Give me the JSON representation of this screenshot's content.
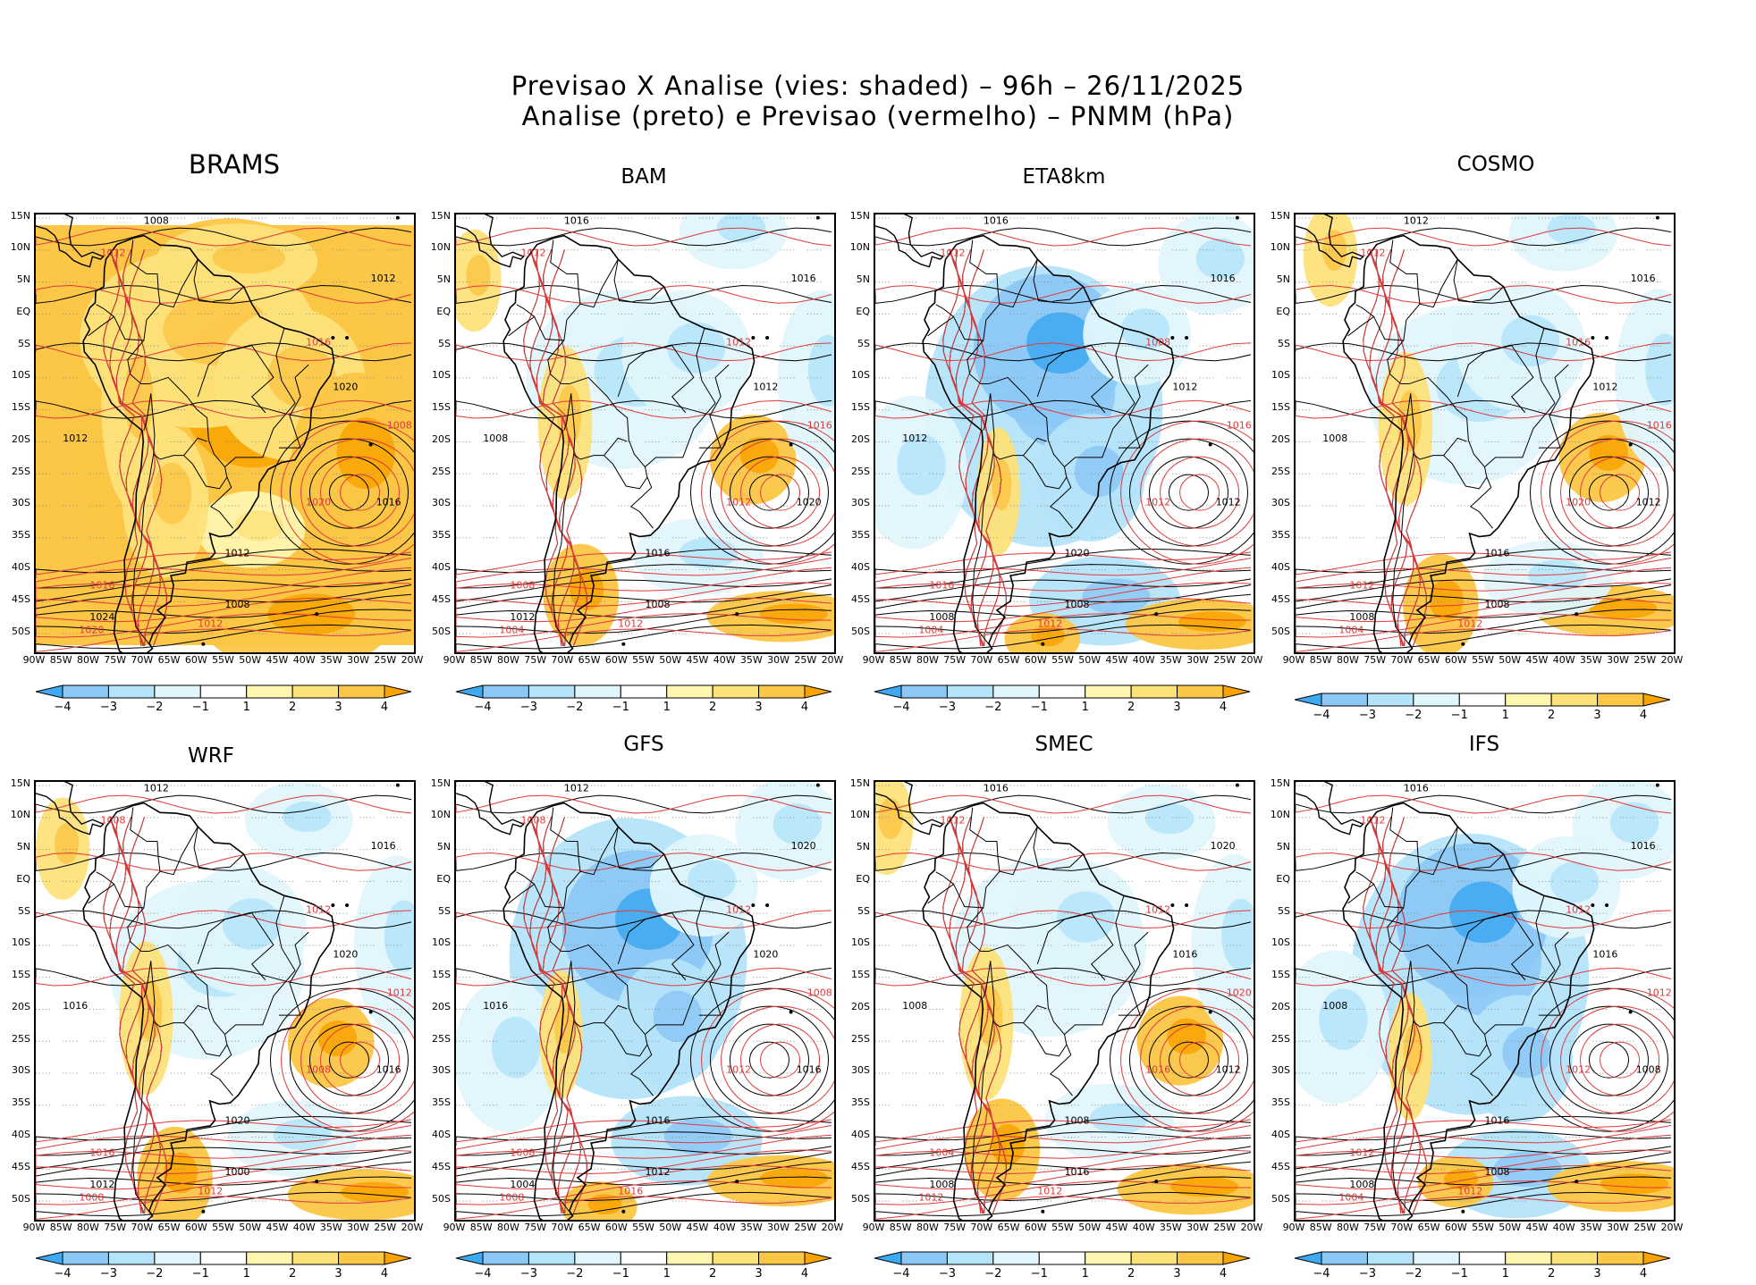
{
  "header": {
    "line1": "Previsao X Analise (vies: shaded) – 96h – 26/11/2025",
    "line2": "Analise (preto) e Previsao (vermelho) – PNMM (hPa)"
  },
  "axes": {
    "lat_labels": [
      "15N",
      "10N",
      "5N",
      "EQ",
      "5S",
      "10S",
      "15S",
      "20S",
      "25S",
      "30S",
      "35S",
      "40S",
      "45S",
      "50S"
    ],
    "lon_labels": [
      "90W",
      "85W",
      "80W",
      "75W",
      "70W",
      "65W",
      "60W",
      "55W",
      "50W",
      "45W",
      "40W",
      "35W",
      "30W",
      "25W",
      "20W"
    ]
  },
  "colorbar": {
    "labels": [
      "−4",
      "−3",
      "−2",
      "−1",
      "1",
      "2",
      "3",
      "4"
    ],
    "colors": [
      "#3ea8f0",
      "#8cc8f5",
      "#b4e4fa",
      "#e0f6fc",
      "#ffffff",
      "#fff6b0",
      "#fde27a",
      "#fcc646",
      "#f8a300"
    ]
  },
  "panels": [
    {
      "name": "BRAMS",
      "style": "warm",
      "labels": [
        "1008",
        "1012",
        "1012",
        "1016",
        "1020",
        "1008",
        "1016",
        "1020",
        "1012",
        "1016",
        "1024",
        "1020",
        "1008",
        "1012",
        "1012"
      ]
    },
    {
      "name": "BAM",
      "style": "mixed",
      "labels": [
        "1016",
        "1012",
        "1008",
        "1012",
        "1012",
        "1016",
        "1020",
        "1012",
        "1016",
        "1008",
        "1012",
        "1004",
        "1008",
        "1012",
        "1016"
      ]
    },
    {
      "name": "ETA8km",
      "style": "cool",
      "labels": [
        "1016",
        "1012",
        "1012",
        "1008",
        "1012",
        "1016",
        "1012",
        "1012",
        "1020",
        "1016",
        "1008",
        "1004",
        "1008",
        "1012",
        "1016"
      ]
    },
    {
      "name": "COSMO",
      "style": "mixed",
      "labels": [
        "1012",
        "1012",
        "1008",
        "1016",
        "1012",
        "1016",
        "1012",
        "1020",
        "1016",
        "1012",
        "1008",
        "1004",
        "1008",
        "1012",
        "1016"
      ]
    },
    {
      "name": "WRF",
      "style": "mixed",
      "labels": [
        "1012",
        "1008",
        "1016",
        "1012",
        "1020",
        "1012",
        "1016",
        "1008",
        "1020",
        "1016",
        "1012",
        "1008",
        "1000",
        "1012",
        "1016"
      ]
    },
    {
      "name": "GFS",
      "style": "cool",
      "labels": [
        "1012",
        "1008",
        "1016",
        "1012",
        "1020",
        "1008",
        "1016",
        "1012",
        "1016",
        "1008",
        "1004",
        "1008",
        "1012",
        "1016",
        "1020"
      ]
    },
    {
      "name": "SMEC",
      "style": "mixed",
      "labels": [
        "1016",
        "1012",
        "1008",
        "1012",
        "1016",
        "1020",
        "1012",
        "1016",
        "1008",
        "1004",
        "1008",
        "1012",
        "1016",
        "1012",
        "1020"
      ]
    },
    {
      "name": "IFS",
      "style": "cool",
      "labels": [
        "1016",
        "1012",
        "1008",
        "1012",
        "1016",
        "1012",
        "1008",
        "1012",
        "1016",
        "1012",
        "1008",
        "1004",
        "1008",
        "1012",
        "1016"
      ]
    }
  ]
}
